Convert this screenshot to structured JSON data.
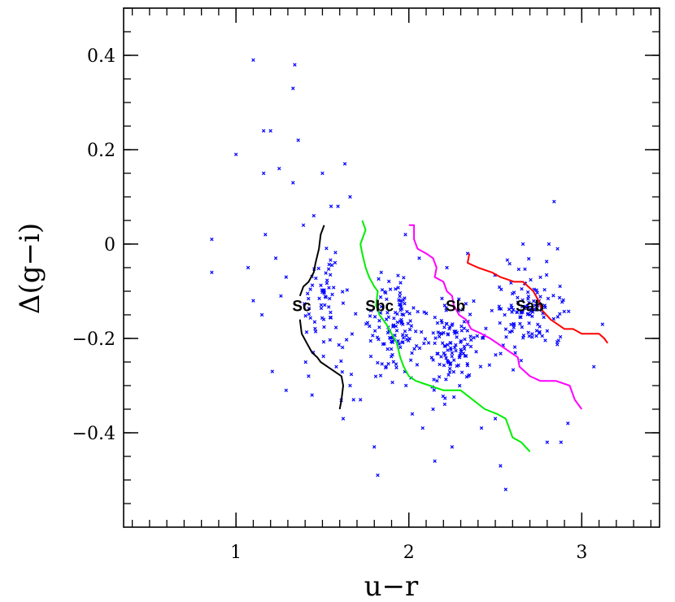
{
  "chart_data": {
    "type": "scatter",
    "xlabel": "u−r",
    "ylabel": "Δ(g−i)",
    "xlim": [
      0.35,
      3.45
    ],
    "ylim": [
      -0.6,
      0.5
    ],
    "x_ticks": [
      {
        "value": 1,
        "label": "1"
      },
      {
        "value": 2,
        "label": "2"
      },
      {
        "value": 3,
        "label": "3"
      }
    ],
    "y_ticks": [
      {
        "value": 0.4,
        "label": "0.4"
      },
      {
        "value": 0.2,
        "label": "0.2"
      },
      {
        "value": 0,
        "label": "0"
      },
      {
        "value": -0.2,
        "label": "−0.2"
      },
      {
        "value": -0.4,
        "label": "−0.4"
      }
    ],
    "x_minor_step": 0.1,
    "y_minor_step": 0.05,
    "grid": false,
    "legend": "none",
    "points_color": "#0000ff",
    "points_seed": 7,
    "points": [
      [
        0.86,
        0.01
      ],
      [
        0.86,
        -0.06
      ],
      [
        1.0,
        0.19
      ],
      [
        1.1,
        0.39
      ],
      [
        1.34,
        0.38
      ],
      [
        1.33,
        0.33
      ],
      [
        1.36,
        0.22
      ],
      [
        1.16,
        0.24
      ],
      [
        1.2,
        0.24
      ],
      [
        1.16,
        0.15
      ],
      [
        1.25,
        0.16
      ],
      [
        1.33,
        0.13
      ],
      [
        1.5,
        0.15
      ],
      [
        1.45,
        0.06
      ],
      [
        1.55,
        0.08
      ],
      [
        1.59,
        0.08
      ],
      [
        1.63,
        0.17
      ],
      [
        1.66,
        0.1
      ],
      [
        1.07,
        -0.05
      ],
      [
        1.1,
        -0.12
      ],
      [
        1.15,
        -0.15
      ],
      [
        1.17,
        0.02
      ],
      [
        1.23,
        -0.03
      ],
      [
        1.26,
        -0.11
      ],
      [
        1.29,
        -0.07
      ],
      [
        1.21,
        -0.27
      ],
      [
        1.29,
        -0.31
      ],
      [
        1.62,
        -0.37
      ],
      [
        1.68,
        -0.33
      ],
      [
        1.8,
        -0.43
      ],
      [
        1.82,
        -0.49
      ],
      [
        2.15,
        -0.46
      ],
      [
        2.25,
        -0.43
      ],
      [
        2.53,
        -0.47
      ],
      [
        2.56,
        -0.52
      ],
      [
        2.8,
        -0.42
      ],
      [
        2.88,
        -0.42
      ],
      [
        2.92,
        -0.38
      ],
      [
        3.07,
        -0.26
      ],
      [
        3.12,
        -0.17
      ],
      [
        2.84,
        0.09
      ],
      [
        2.86,
        -0.01
      ],
      [
        2.81,
        0.0
      ],
      [
        2.66,
        0.0
      ],
      [
        2.34,
        -0.02
      ],
      [
        2.22,
        -0.05
      ],
      [
        2.06,
        -0.03
      ],
      [
        1.98,
        0.02
      ],
      [
        1.84,
        -0.06
      ],
      [
        1.39,
        0.04
      ],
      [
        1.42,
        -0.28
      ],
      [
        1.44,
        -0.32
      ],
      [
        1.58,
        -0.26
      ],
      [
        1.66,
        -0.3
      ],
      [
        1.72,
        -0.33
      ],
      [
        2.02,
        -0.36
      ],
      [
        2.08,
        -0.39
      ],
      [
        2.14,
        -0.35
      ],
      [
        2.42,
        -0.39
      ],
      [
        2.5,
        -0.37
      ]
    ],
    "points_cloud": [
      {
        "cx": 1.52,
        "cy": -0.14,
        "sx": 0.11,
        "sy": 0.09,
        "n": 70
      },
      {
        "cx": 1.92,
        "cy": -0.18,
        "sx": 0.13,
        "sy": 0.08,
        "n": 120
      },
      {
        "cx": 2.25,
        "cy": -0.22,
        "sx": 0.15,
        "sy": 0.08,
        "n": 130
      },
      {
        "cx": 2.68,
        "cy": -0.14,
        "sx": 0.17,
        "sy": 0.09,
        "n": 120
      }
    ],
    "series": [
      {
        "name": "Sc",
        "color": "#000000",
        "label_at": [
          1.38,
          -0.13
        ],
        "segments": [
          [
            [
              1.51,
              0.04
            ],
            [
              1.49,
              0.02
            ],
            [
              1.48,
              -0.01
            ],
            [
              1.46,
              -0.04
            ],
            [
              1.45,
              -0.06
            ],
            [
              1.42,
              -0.08
            ],
            [
              1.39,
              -0.09
            ],
            [
              1.37,
              -0.11
            ]
          ],
          [
            [
              1.37,
              -0.16
            ],
            [
              1.38,
              -0.19
            ],
            [
              1.41,
              -0.21
            ],
            [
              1.44,
              -0.23
            ],
            [
              1.47,
              -0.24
            ],
            [
              1.49,
              -0.25
            ],
            [
              1.53,
              -0.26
            ],
            [
              1.57,
              -0.27
            ],
            [
              1.61,
              -0.28
            ],
            [
              1.62,
              -0.3
            ],
            [
              1.61,
              -0.33
            ],
            [
              1.6,
              -0.35
            ]
          ]
        ]
      },
      {
        "name": "Sbc",
        "color": "#00ee00",
        "label_at": [
          1.83,
          -0.13
        ],
        "segments": [
          [
            [
              1.73,
              0.05
            ],
            [
              1.75,
              0.03
            ],
            [
              1.72,
              0.0
            ],
            [
              1.73,
              -0.02
            ],
            [
              1.75,
              -0.05
            ],
            [
              1.77,
              -0.07
            ],
            [
              1.8,
              -0.09
            ],
            [
              1.82,
              -0.1
            ],
            [
              1.81,
              -0.13
            ],
            [
              1.83,
              -0.15
            ],
            [
              1.87,
              -0.17
            ],
            [
              1.9,
              -0.19
            ],
            [
              1.93,
              -0.21
            ],
            [
              1.95,
              -0.24
            ],
            [
              1.97,
              -0.26
            ],
            [
              2.0,
              -0.28
            ],
            [
              2.04,
              -0.29
            ],
            [
              2.12,
              -0.3
            ],
            [
              2.2,
              -0.31
            ],
            [
              2.3,
              -0.31
            ],
            [
              2.37,
              -0.33
            ],
            [
              2.44,
              -0.35
            ],
            [
              2.51,
              -0.36
            ],
            [
              2.56,
              -0.37
            ],
            [
              2.58,
              -0.39
            ],
            [
              2.6,
              -0.41
            ],
            [
              2.65,
              -0.42
            ],
            [
              2.7,
              -0.44
            ]
          ]
        ]
      },
      {
        "name": "Sb",
        "color": "#ff00ff",
        "label_at": [
          2.27,
          -0.13
        ],
        "segments": [
          [
            [
              2.0,
              0.04
            ],
            [
              2.03,
              0.04
            ],
            [
              2.03,
              0.01
            ],
            [
              2.05,
              -0.01
            ],
            [
              2.1,
              -0.02
            ],
            [
              2.14,
              -0.03
            ],
            [
              2.16,
              -0.05
            ],
            [
              2.15,
              -0.07
            ],
            [
              2.2,
              -0.08
            ],
            [
              2.22,
              -0.1
            ],
            [
              2.25,
              -0.11
            ],
            [
              2.26,
              -0.13
            ],
            [
              2.29,
              -0.15
            ],
            [
              2.33,
              -0.16
            ],
            [
              2.36,
              -0.18
            ],
            [
              2.42,
              -0.19
            ],
            [
              2.47,
              -0.2
            ],
            [
              2.55,
              -0.22
            ],
            [
              2.59,
              -0.23
            ],
            [
              2.63,
              -0.24
            ],
            [
              2.64,
              -0.26
            ],
            [
              2.7,
              -0.28
            ],
            [
              2.76,
              -0.29
            ],
            [
              2.85,
              -0.29
            ],
            [
              2.93,
              -0.3
            ],
            [
              2.96,
              -0.33
            ],
            [
              3.0,
              -0.35
            ]
          ]
        ]
      },
      {
        "name": "Sab",
        "color": "#ff0000",
        "label_at": [
          2.7,
          -0.13
        ],
        "segments": [
          [
            [
              2.35,
              -0.02
            ],
            [
              2.34,
              -0.04
            ],
            [
              2.4,
              -0.05
            ],
            [
              2.48,
              -0.06
            ],
            [
              2.53,
              -0.07
            ],
            [
              2.61,
              -0.08
            ],
            [
              2.66,
              -0.08
            ],
            [
              2.72,
              -0.1
            ],
            [
              2.75,
              -0.12
            ],
            [
              2.77,
              -0.14
            ],
            [
              2.82,
              -0.16
            ],
            [
              2.86,
              -0.17
            ],
            [
              2.9,
              -0.18
            ],
            [
              2.95,
              -0.18
            ],
            [
              3.0,
              -0.19
            ],
            [
              3.05,
              -0.19
            ],
            [
              3.1,
              -0.19
            ],
            [
              3.13,
              -0.2
            ],
            [
              3.15,
              -0.21
            ]
          ]
        ]
      }
    ]
  }
}
